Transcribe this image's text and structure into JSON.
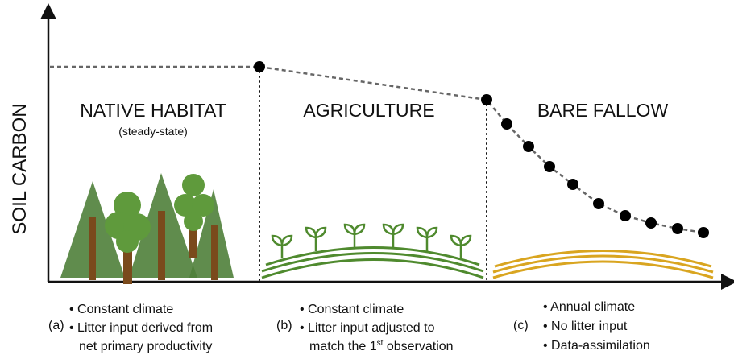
{
  "axis_label": "SOIL CARBON",
  "stages": [
    {
      "title": "NATIVE HABITAT",
      "subtitle": "(steady-state)"
    },
    {
      "title": "AGRICULTURE"
    },
    {
      "title": "BARE FALLOW"
    }
  ],
  "panels": [
    {
      "letter": "(a)",
      "bullets": [
        "Constant climate",
        "Litter input derived from",
        "net primary productivity"
      ]
    },
    {
      "letter": "(b)",
      "bullets": [
        "Constant climate",
        "Litter input adjusted to"
      ],
      "continuation": [
        "match the 1",
        "st",
        " observation"
      ]
    },
    {
      "letter": "(c)",
      "bullets": [
        "Annual climate",
        "No litter input",
        "Data-assimilation"
      ]
    }
  ]
}
